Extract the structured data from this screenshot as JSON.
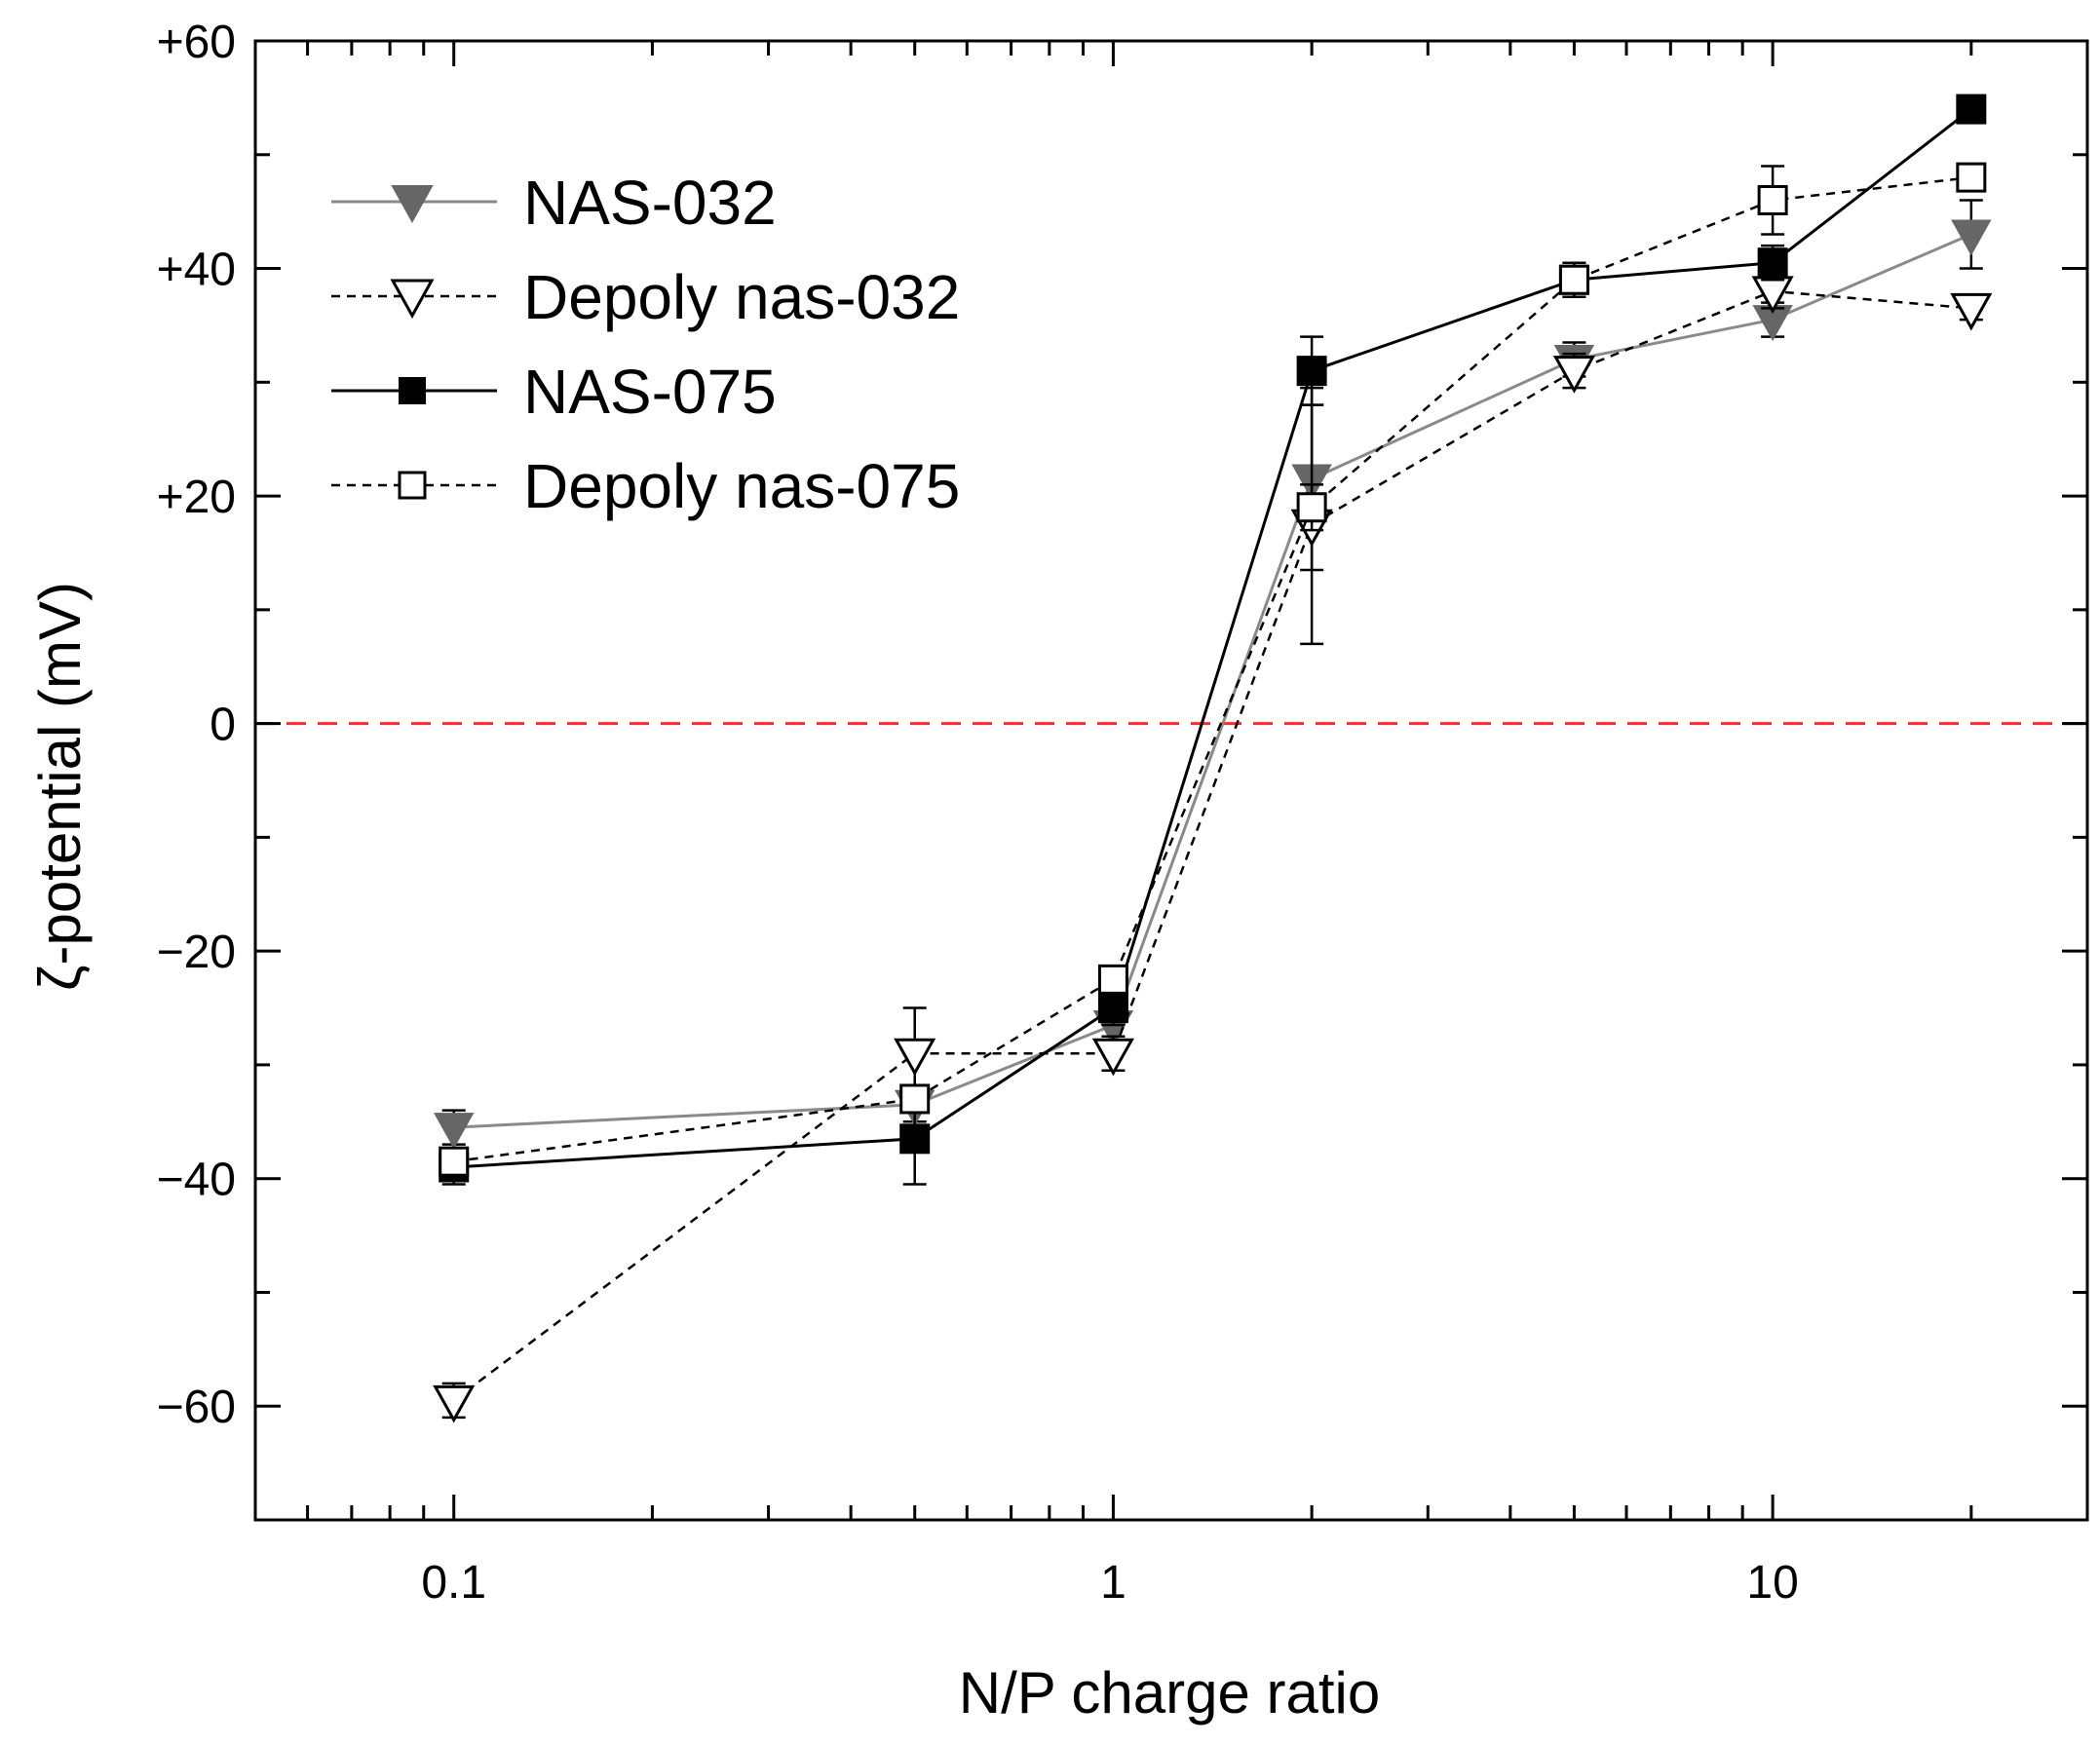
{
  "chart_data": {
    "type": "line",
    "xscale": "log",
    "xlabel": "N/P charge ratio",
    "ylabel": "ζ-potential (mV)",
    "xlim": [
      0.05,
      30
    ],
    "ylim": [
      -70,
      60
    ],
    "xticks": [
      {
        "value": 0.1,
        "label": "0.1"
      },
      {
        "value": 1,
        "label": "1"
      },
      {
        "value": 10,
        "label": "10"
      }
    ],
    "yticks": [
      {
        "value": 60,
        "label": "+60"
      },
      {
        "value": 40,
        "label": "+40"
      },
      {
        "value": 20,
        "label": "+20"
      },
      {
        "value": 0,
        "label": "0"
      },
      {
        "value": -20,
        "label": "−20"
      },
      {
        "value": -40,
        "label": "−40"
      },
      {
        "value": -60,
        "label": "−60"
      }
    ],
    "reference_line": {
      "y": 0,
      "color": "#ff2a2a",
      "style": "dashed"
    },
    "legend_position": "top-left",
    "x": [
      0.1,
      0.5,
      1,
      2,
      5,
      10,
      20
    ],
    "series": [
      {
        "name": "NAS-032",
        "marker": "triangle-down-filled",
        "line": "solid",
        "color": "#888888",
        "values": [
          -35.5,
          -33.5,
          -26.5,
          21.5,
          32.0,
          35.5,
          43.0
        ],
        "errors": [
          1.5,
          1.5,
          1.5,
          8.0,
          1.5,
          1.5,
          3.0
        ]
      },
      {
        "name": "Depoly nas-032",
        "marker": "triangle-down-open",
        "line": "dashed",
        "color": "#000000",
        "values": [
          -59.5,
          -29.0,
          -29.0,
          17.5,
          31.0,
          38.0,
          36.5
        ],
        "errors": [
          1.5,
          4.0,
          1.5,
          10.5,
          1.5,
          1.5,
          1.0
        ]
      },
      {
        "name": "NAS-075",
        "marker": "square-filled",
        "line": "solid",
        "color": "#000000",
        "values": [
          -39.0,
          -36.5,
          -25.0,
          31.0,
          39.0,
          40.5,
          54.0
        ],
        "errors": [
          1.5,
          4.0,
          1.5,
          3.0,
          1.5,
          1.5,
          0.5
        ]
      },
      {
        "name": "Depoly nas-075",
        "marker": "square-open",
        "line": "dashed",
        "color": "#000000",
        "values": [
          -38.5,
          -33.0,
          -22.5,
          19.0,
          39.0,
          46.0,
          48.0
        ],
        "errors": [
          1.0,
          1.0,
          1.0,
          2.0,
          1.5,
          3.0,
          1.0
        ]
      }
    ]
  }
}
